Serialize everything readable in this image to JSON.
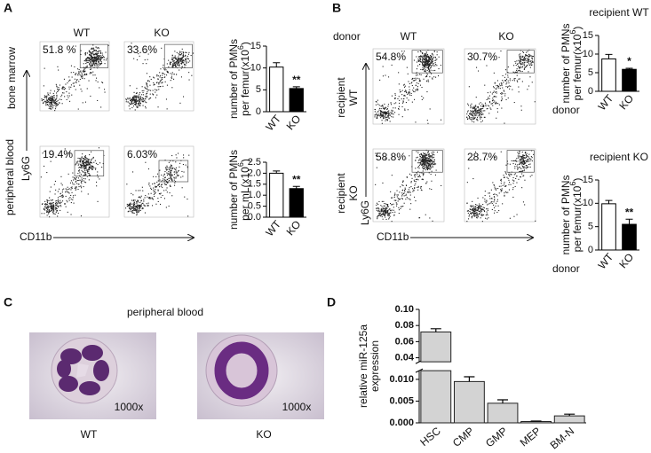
{
  "figure": {
    "A": {
      "letter": "A",
      "columns": [
        "WT",
        "KO"
      ],
      "rows": [
        "bone marrow",
        "peripheral blood"
      ],
      "gates": [
        [
          "51.8 %",
          "33.6%"
        ],
        [
          "19.4%",
          "6.03%"
        ]
      ],
      "y_axis": "Ly6G",
      "x_axis": "CD11b"
    },
    "B": {
      "letter": "B",
      "donor": "donor",
      "columns": [
        "WT",
        "KO"
      ],
      "rows": [
        {
          "line1": "recipient",
          "line2": "WT"
        },
        {
          "line1": "recipient",
          "line2": "KO"
        }
      ],
      "gates": [
        [
          "54.8%",
          "30.7%"
        ],
        [
          "58.8%",
          "28.7%"
        ]
      ],
      "y_axis": "Ly6G",
      "x_axis": "CD11b"
    },
    "C": {
      "letter": "C",
      "title": "peripheral blood",
      "images": [
        {
          "label": "WT",
          "magnification": "1000x"
        },
        {
          "label": "KO",
          "magnification": "1000x"
        }
      ]
    },
    "D": {
      "letter": "D"
    }
  },
  "chart_data": [
    {
      "type": "bar",
      "categories": [
        "WT",
        "KO"
      ],
      "values": [
        10.2,
        5.3
      ],
      "errors": [
        1.0,
        0.4
      ],
      "colors": [
        "#ffffff",
        "#000000"
      ],
      "significance_labels": [
        null,
        "**"
      ],
      "ylabel": {
        "line1": "number of PMNs",
        "line2": "per femur(x10",
        "sup": "6",
        "end": ")"
      },
      "ylim": [
        0,
        15
      ],
      "yticks": [
        0,
        5,
        10,
        15
      ]
    },
    {
      "type": "bar",
      "categories": [
        "WT",
        "KO"
      ],
      "values": [
        2.0,
        1.3
      ],
      "errors": [
        0.1,
        0.1
      ],
      "colors": [
        "#ffffff",
        "#000000"
      ],
      "significance_labels": [
        null,
        "**"
      ],
      "ylabel": {
        "line1": "number of PMNs",
        "line2": "per mL(x10",
        "sup": "6",
        "end": ")"
      },
      "ylim": [
        0,
        2.5
      ],
      "yticks": [
        {
          "value": 0,
          "label": "0.0"
        },
        0.5,
        {
          "value": 1,
          "label": "1.0"
        },
        1.5,
        {
          "value": 2,
          "label": "2.0"
        },
        2.5
      ]
    },
    {
      "type": "bar",
      "title": "recipient WT",
      "xlabel": "donor",
      "categories": [
        "WT",
        "KO"
      ],
      "values": [
        8.7,
        5.9
      ],
      "errors": [
        1.2,
        0.3
      ],
      "colors": [
        "#ffffff",
        "#000000"
      ],
      "significance_labels": [
        null,
        "*"
      ],
      "ylabel": {
        "line1": "number of PMNs",
        "line2": "per femur(x10",
        "sup": "6",
        "end": ")"
      },
      "ylim": [
        0,
        15
      ],
      "yticks": [
        0,
        5,
        10,
        15
      ]
    },
    {
      "type": "bar",
      "title": "recipient KO",
      "xlabel": "donor",
      "categories": [
        "WT",
        "KO"
      ],
      "values": [
        9.9,
        5.5
      ],
      "errors": [
        0.7,
        1.1
      ],
      "colors": [
        "#ffffff",
        "#000000"
      ],
      "significance_labels": [
        null,
        "**"
      ],
      "ylabel": {
        "line1": "number of PMNs",
        "line2": "per femur(x10",
        "sup": "6",
        "end": ")"
      },
      "ylim": [
        0,
        15
      ],
      "yticks": [
        0,
        5,
        10,
        15
      ]
    },
    {
      "type": "broken_bar",
      "categories": [
        "HSC",
        "CMP",
        "GMP",
        "MEP",
        "BM-N"
      ],
      "values": [
        0.072,
        0.0095,
        0.0045,
        0.0003,
        0.0016
      ],
      "errors": [
        0.004,
        0.0011,
        0.0008,
        0.0001,
        0.0004
      ],
      "color": "#d3d3d3",
      "ylabel": {
        "line1": "relative miR-125a",
        "line2": "expression"
      },
      "ylim": [
        0,
        0.1
      ],
      "axis_break": [
        0.012,
        0.035
      ],
      "yticks": [
        {
          "value": 0,
          "label": "0.000"
        },
        0.005,
        {
          "value": 0.01,
          "label": "0.010"
        },
        0.04,
        0.06,
        0.08,
        {
          "value": 0.1,
          "label": "0.10"
        }
      ]
    }
  ]
}
